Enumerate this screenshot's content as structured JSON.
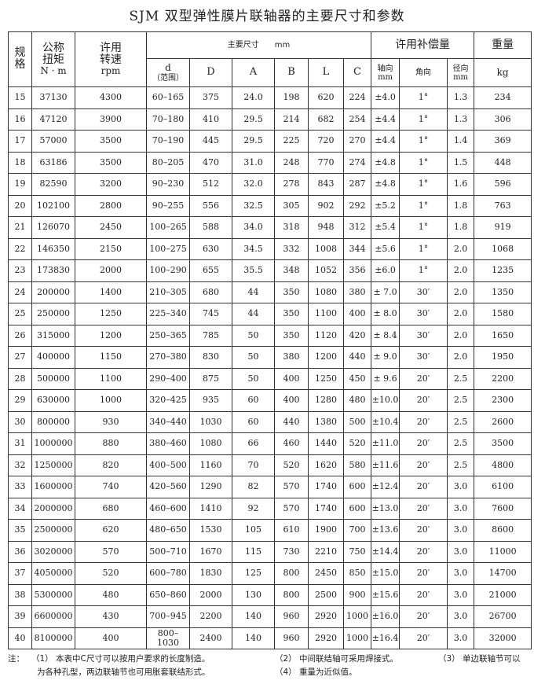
{
  "title": "SJM 双型弹性膜片联轴器的主要尺寸和参数",
  "headers": {
    "spec": "规格",
    "torque": "公称扭矩",
    "torque_unit": "N · m",
    "speed": "许用转速",
    "speed_unit": "rpm",
    "dims": "主要尺寸　　mm",
    "d": "d",
    "d_note": "（范围）",
    "D": "D",
    "A": "A",
    "B": "B",
    "L": "L",
    "C": "C",
    "comp": "许用补偿量",
    "axial": "轴向",
    "axial_unit": "mm",
    "angular": "角向",
    "radial": "径向",
    "radial_unit": "mm",
    "weight": "重量",
    "weight_unit": "kg"
  },
  "rows": [
    [
      "15",
      "37130",
      "4300",
      "60–165",
      "375",
      "24.0",
      "198",
      "620",
      "224",
      "±4.0",
      "1°",
      "1.3",
      "234"
    ],
    [
      "16",
      "47120",
      "3900",
      "70–180",
      "410",
      "29.5",
      "214",
      "682",
      "254",
      "±4.4",
      "1°",
      "1.3",
      "306"
    ],
    [
      "17",
      "57000",
      "3500",
      "70–190",
      "445",
      "29.5",
      "225",
      "720",
      "270",
      "±4.4",
      "1°",
      "1.4",
      "369"
    ],
    [
      "18",
      "63186",
      "3500",
      "80–205",
      "470",
      "31.0",
      "248",
      "770",
      "274",
      "±4.8",
      "1°",
      "1.5",
      "448"
    ],
    [
      "19",
      "82590",
      "3200",
      "90–230",
      "512",
      "32.0",
      "278",
      "843",
      "287",
      "±4.8",
      "1°",
      "1.6",
      "596"
    ],
    [
      "20",
      "102100",
      "2800",
      "90–255",
      "556",
      "32.5",
      "305",
      "902",
      "292",
      "±5.2",
      "1°",
      "1.8",
      "763"
    ],
    [
      "21",
      "126070",
      "2450",
      "100–265",
      "588",
      "34.0",
      "318",
      "948",
      "312",
      "±5.4",
      "1°",
      "1.8",
      "919"
    ],
    [
      "22",
      "146350",
      "2150",
      "100–275",
      "630",
      "34.5",
      "332",
      "1008",
      "344",
      "±5.6",
      "1°",
      "2.0",
      "1068"
    ],
    [
      "23",
      "173830",
      "2000",
      "100–290",
      "655",
      "35.5",
      "348",
      "1052",
      "356",
      "±6.0",
      "1°",
      "2.0",
      "1235"
    ],
    [
      "24",
      "200000",
      "1400",
      "210–305",
      "680",
      "44",
      "350",
      "1080",
      "380",
      "± 7.0",
      "30′",
      "2.0",
      "1350"
    ],
    [
      "25",
      "250000",
      "1250",
      "225–340",
      "745",
      "44",
      "350",
      "1100",
      "400",
      "± 8.0",
      "30′",
      "2.0",
      "1580"
    ],
    [
      "26",
      "315000",
      "1200",
      "250–365",
      "785",
      "50",
      "350",
      "1120",
      "420",
      "± 8.4",
      "30′",
      "2.0",
      "1650"
    ],
    [
      "27",
      "400000",
      "1150",
      "270–380",
      "830",
      "50",
      "380",
      "1200",
      "440",
      "± 9.0",
      "30′",
      "2.0",
      "1950"
    ],
    [
      "28",
      "500000",
      "1100",
      "290–400",
      "875",
      "50",
      "400",
      "1250",
      "450",
      "± 9.6",
      "20′",
      "2.5",
      "2200"
    ],
    [
      "29",
      "630000",
      "1000",
      "320–425",
      "935",
      "60",
      "400",
      "1280",
      "480",
      "±10.0",
      "20′",
      "2.5",
      "2300"
    ],
    [
      "30",
      "800000",
      "930",
      "340–440",
      "1030",
      "60",
      "440",
      "1380",
      "500",
      "±10.4",
      "20′",
      "2.5",
      "2600"
    ],
    [
      "31",
      "1000000",
      "880",
      "380–460",
      "1080",
      "66",
      "460",
      "1440",
      "520",
      "±11.0",
      "20′",
      "2.5",
      "3500"
    ],
    [
      "32",
      "1250000",
      "820",
      "400–500",
      "1160",
      "70",
      "520",
      "1620",
      "580",
      "±11.6",
      "20′",
      "2.5",
      "4800"
    ],
    [
      "33",
      "1600000",
      "740",
      "420–560",
      "1290",
      "82",
      "570",
      "1740",
      "600",
      "±12.4",
      "20′",
      "3.0",
      "6100"
    ],
    [
      "34",
      "2000000",
      "680",
      "460–600",
      "1410",
      "92",
      "570",
      "1740",
      "600",
      "±13.0",
      "20′",
      "3.0",
      "7600"
    ],
    [
      "35",
      "2500000",
      "620",
      "480–650",
      "1530",
      "105",
      "610",
      "1900",
      "700",
      "±13.6",
      "20′",
      "3.0",
      "8600"
    ],
    [
      "36",
      "3020000",
      "570",
      "500–710",
      "1670",
      "115",
      "730",
      "2210",
      "750",
      "±14.4",
      "20′",
      "3.0",
      "11000"
    ],
    [
      "37",
      "4050000",
      "520",
      "600–780",
      "1830",
      "125",
      "800",
      "2450",
      "850",
      "±15.0",
      "20′",
      "3.0",
      "14700"
    ],
    [
      "38",
      "5300000",
      "480",
      "650–860",
      "2000",
      "130",
      "800",
      "2500",
      "900",
      "±15.6",
      "20′",
      "3.0",
      "21000"
    ],
    [
      "39",
      "6600000",
      "430",
      "700–945",
      "2200",
      "140",
      "960",
      "2920",
      "1000",
      "±16.0",
      "20′",
      "3.0",
      "26700"
    ],
    [
      "40",
      "8100000",
      "400",
      "800–1030",
      "2400",
      "140",
      "960",
      "2920",
      "1000",
      "±16.4",
      "20′",
      "3.0",
      "32000"
    ]
  ],
  "notes": {
    "label": "注：",
    "n1": "（1） 本表中C尺寸可以按用户要求的长度制造。",
    "n2": "（2） 中间联结轴可采用焊接式。",
    "n3": "（3） 单边联轴节可以",
    "n3b": "为各种孔型，两边联轴节也可用胀套联结形式。",
    "n4": "（4） 重量为近似值。"
  }
}
